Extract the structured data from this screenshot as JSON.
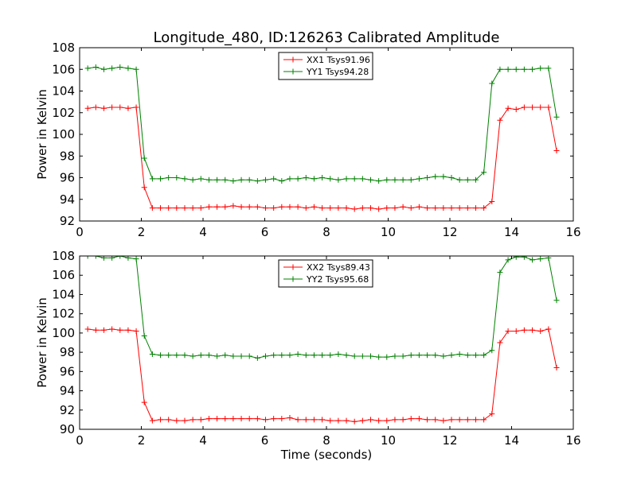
{
  "figure": {
    "title": "Longitude_480, ID:126263 Calibrated Amplitude"
  },
  "colors": {
    "xx": "#ff0000",
    "yy": "#008000"
  },
  "chart_data": [
    {
      "type": "line",
      "title": "Longitude_480, ID:126263 Calibrated Amplitude",
      "xlabel": "",
      "ylabel": "Power in Kelvin",
      "xlim": [
        0,
        16
      ],
      "ylim": [
        92,
        108
      ],
      "xticks": [
        0,
        2,
        4,
        6,
        8,
        10,
        12,
        14,
        16
      ],
      "yticks": [
        92,
        94,
        96,
        98,
        100,
        102,
        104,
        106,
        108
      ],
      "legend_position": "top-center",
      "grid": false,
      "x": [
        0.262,
        0.524,
        0.786,
        1.048,
        1.31,
        1.572,
        1.834,
        2.096,
        2.358,
        2.62,
        2.882,
        3.144,
        3.406,
        3.668,
        3.93,
        4.192,
        4.454,
        4.716,
        4.978,
        5.24,
        5.502,
        5.764,
        6.026,
        6.288,
        6.55,
        6.812,
        7.074,
        7.336,
        7.598,
        7.86,
        8.122,
        8.384,
        8.646,
        8.908,
        9.17,
        9.432,
        9.694,
        9.956,
        10.218,
        10.48,
        10.742,
        11.004,
        11.266,
        11.528,
        11.79,
        12.052,
        12.314,
        12.576,
        12.838,
        13.1,
        13.362,
        13.624,
        13.886,
        14.148,
        14.41,
        14.672,
        14.934,
        15.196,
        15.458
      ],
      "series": [
        {
          "name": "XX1 Tsys91.96",
          "color": "#ff0000",
          "values": [
            102.4,
            102.5,
            102.4,
            102.5,
            102.5,
            102.4,
            102.5,
            95.1,
            93.2,
            93.2,
            93.2,
            93.2,
            93.2,
            93.2,
            93.2,
            93.3,
            93.3,
            93.3,
            93.4,
            93.3,
            93.3,
            93.3,
            93.2,
            93.2,
            93.3,
            93.3,
            93.3,
            93.2,
            93.3,
            93.2,
            93.2,
            93.2,
            93.2,
            93.1,
            93.2,
            93.2,
            93.1,
            93.2,
            93.2,
            93.3,
            93.2,
            93.3,
            93.2,
            93.2,
            93.2,
            93.2,
            93.2,
            93.2,
            93.2,
            93.2,
            93.8,
            101.3,
            102.4,
            102.3,
            102.5,
            102.5,
            102.5,
            102.5,
            98.5
          ]
        },
        {
          "name": "YY1 Tsys94.28",
          "color": "#008000",
          "values": [
            106.1,
            106.2,
            106.0,
            106.1,
            106.2,
            106.1,
            106.0,
            97.8,
            95.9,
            95.9,
            96.0,
            96.0,
            95.9,
            95.8,
            95.9,
            95.8,
            95.8,
            95.8,
            95.7,
            95.8,
            95.8,
            95.7,
            95.8,
            95.9,
            95.7,
            95.9,
            95.9,
            96.0,
            95.9,
            96.0,
            95.9,
            95.8,
            95.9,
            95.9,
            95.9,
            95.8,
            95.7,
            95.8,
            95.8,
            95.8,
            95.8,
            95.9,
            96.0,
            96.1,
            96.1,
            96.0,
            95.8,
            95.8,
            95.8,
            96.5,
            104.7,
            106.0,
            106.0,
            106.0,
            106.0,
            106.0,
            106.1,
            106.1,
            101.6
          ]
        }
      ]
    },
    {
      "type": "line",
      "title": "",
      "xlabel": "Time (seconds)",
      "ylabel": "Power in Kelvin",
      "xlim": [
        0,
        16
      ],
      "ylim": [
        90,
        108
      ],
      "xticks": [
        0,
        2,
        4,
        6,
        8,
        10,
        12,
        14,
        16
      ],
      "yticks": [
        90,
        92,
        94,
        96,
        98,
        100,
        102,
        104,
        106,
        108
      ],
      "legend_position": "top-center",
      "grid": false,
      "x": [
        0.262,
        0.524,
        0.786,
        1.048,
        1.31,
        1.572,
        1.834,
        2.096,
        2.358,
        2.62,
        2.882,
        3.144,
        3.406,
        3.668,
        3.93,
        4.192,
        4.454,
        4.716,
        4.978,
        5.24,
        5.502,
        5.764,
        6.026,
        6.288,
        6.55,
        6.812,
        7.074,
        7.336,
        7.598,
        7.86,
        8.122,
        8.384,
        8.646,
        8.908,
        9.17,
        9.432,
        9.694,
        9.956,
        10.218,
        10.48,
        10.742,
        11.004,
        11.266,
        11.528,
        11.79,
        12.052,
        12.314,
        12.576,
        12.838,
        13.1,
        13.362,
        13.624,
        13.886,
        14.148,
        14.41,
        14.672,
        14.934,
        15.196,
        15.458
      ],
      "series": [
        {
          "name": "XX2 Tsys89.43",
          "color": "#ff0000",
          "values": [
            100.4,
            100.3,
            100.3,
            100.4,
            100.3,
            100.3,
            100.2,
            92.8,
            90.9,
            91.0,
            91.0,
            90.9,
            90.9,
            91.0,
            91.0,
            91.1,
            91.1,
            91.1,
            91.1,
            91.1,
            91.1,
            91.1,
            91.0,
            91.1,
            91.1,
            91.2,
            91.0,
            91.0,
            91.0,
            91.0,
            90.9,
            90.9,
            90.9,
            90.8,
            90.9,
            91.0,
            90.9,
            90.9,
            91.0,
            91.0,
            91.1,
            91.1,
            91.0,
            91.0,
            90.9,
            91.0,
            91.0,
            91.0,
            91.0,
            91.0,
            91.6,
            99.0,
            100.2,
            100.2,
            100.3,
            100.3,
            100.2,
            100.4,
            96.4
          ]
        },
        {
          "name": "YY2 Tsys95.68",
          "color": "#008000",
          "values": [
            108.0,
            108.0,
            107.8,
            107.8,
            108.0,
            107.8,
            107.7,
            99.7,
            97.8,
            97.7,
            97.7,
            97.7,
            97.7,
            97.6,
            97.7,
            97.7,
            97.6,
            97.7,
            97.6,
            97.6,
            97.6,
            97.4,
            97.6,
            97.7,
            97.7,
            97.7,
            97.8,
            97.7,
            97.7,
            97.7,
            97.7,
            97.8,
            97.7,
            97.6,
            97.6,
            97.6,
            97.5,
            97.5,
            97.6,
            97.6,
            97.7,
            97.7,
            97.7,
            97.7,
            97.6,
            97.7,
            97.8,
            97.7,
            97.7,
            97.7,
            98.2,
            106.3,
            107.6,
            107.9,
            107.9,
            107.6,
            107.7,
            107.8,
            103.4
          ]
        }
      ]
    }
  ]
}
